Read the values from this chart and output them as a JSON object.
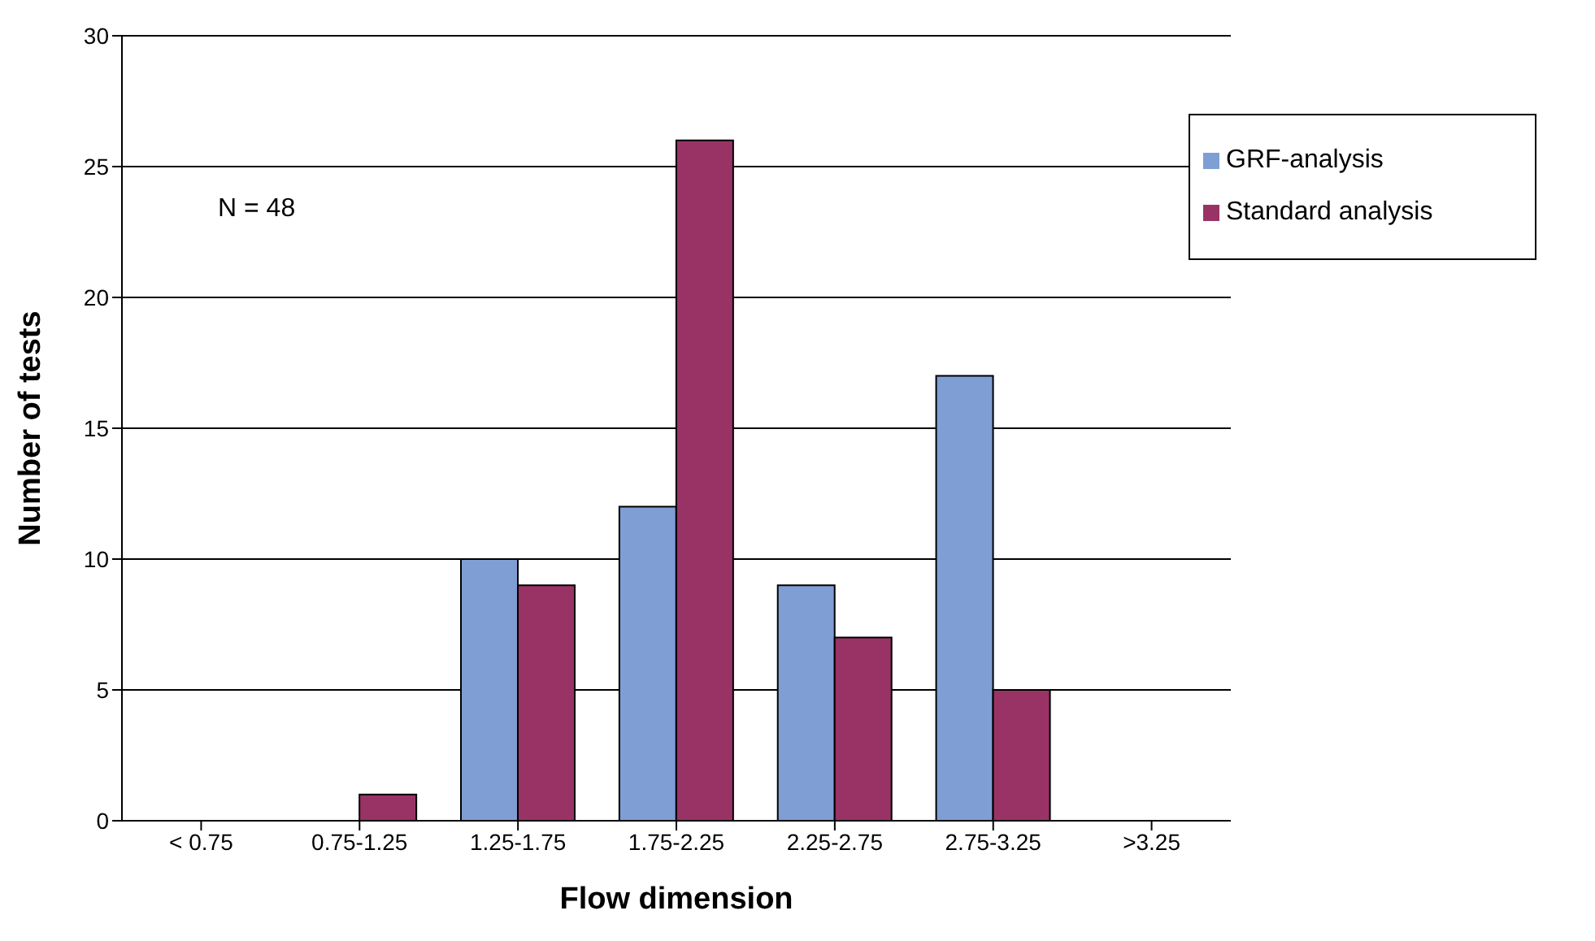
{
  "chart_data": {
    "type": "bar",
    "xlabel": "Flow dimension",
    "ylabel": "Number of tests",
    "categories": [
      "< 0.75",
      "0.75-1.25",
      "1.25-1.75",
      "1.75-2.25",
      "2.25-2.75",
      "2.75-3.25",
      ">3.25"
    ],
    "series": [
      {
        "name": "GRF-analysis",
        "color": "#7f9ed4",
        "values": [
          0,
          0,
          10,
          12,
          9,
          17,
          0
        ]
      },
      {
        "name": "Standard analysis",
        "color": "#993366",
        "values": [
          0,
          1,
          9,
          26,
          7,
          5,
          0
        ]
      }
    ],
    "ylim": [
      0,
      30
    ],
    "yticks": [
      0,
      5,
      10,
      15,
      20,
      25,
      30
    ],
    "grid": "y",
    "legend": "top right",
    "annotations": [
      "N = 48"
    ]
  }
}
